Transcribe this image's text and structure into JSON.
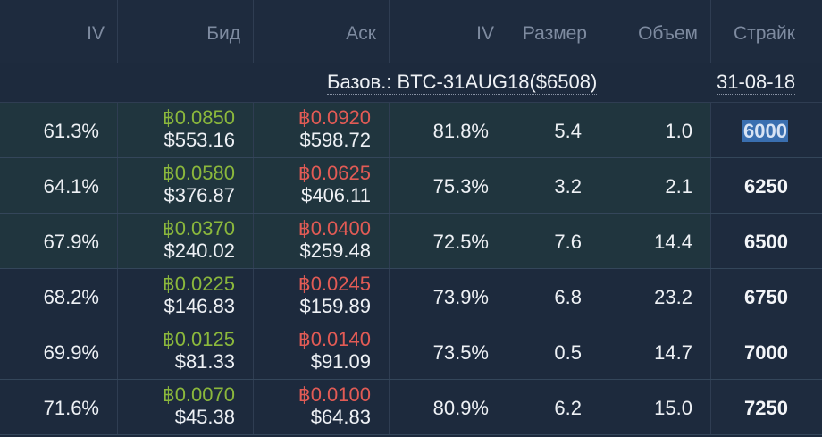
{
  "header": {
    "columns": [
      "IV",
      "Бид",
      "Аск",
      "IV",
      "Размер",
      "Объем",
      "Страйк"
    ]
  },
  "subheader": {
    "underlying": "Базов.: BTC-31AUG18($6508)",
    "expiry": "31-08-18"
  },
  "rows": [
    {
      "iv_bid": "61.3%",
      "bid_btc": "฿0.0850",
      "bid_usd": "$553.16",
      "ask_btc": "฿0.0920",
      "ask_usd": "$598.72",
      "iv_ask": "81.8%",
      "size": "5.4",
      "volume": "1.0",
      "strike": "6000",
      "in_money": true,
      "selected": true
    },
    {
      "iv_bid": "64.1%",
      "bid_btc": "฿0.0580",
      "bid_usd": "$376.87",
      "ask_btc": "฿0.0625",
      "ask_usd": "$406.11",
      "iv_ask": "75.3%",
      "size": "3.2",
      "volume": "2.1",
      "strike": "6250",
      "in_money": true,
      "selected": false
    },
    {
      "iv_bid": "67.9%",
      "bid_btc": "฿0.0370",
      "bid_usd": "$240.02",
      "ask_btc": "฿0.0400",
      "ask_usd": "$259.48",
      "iv_ask": "72.5%",
      "size": "7.6",
      "volume": "14.4",
      "strike": "6500",
      "in_money": true,
      "selected": false
    },
    {
      "iv_bid": "68.2%",
      "bid_btc": "฿0.0225",
      "bid_usd": "$146.83",
      "ask_btc": "฿0.0245",
      "ask_usd": "$159.89",
      "iv_ask": "73.9%",
      "size": "6.8",
      "volume": "23.2",
      "strike": "6750",
      "in_money": false,
      "selected": false
    },
    {
      "iv_bid": "69.9%",
      "bid_btc": "฿0.0125",
      "bid_usd": "$81.33",
      "ask_btc": "฿0.0140",
      "ask_usd": "$91.09",
      "iv_ask": "73.5%",
      "size": "0.5",
      "volume": "14.7",
      "strike": "7000",
      "in_money": false,
      "selected": false
    },
    {
      "iv_bid": "71.6%",
      "bid_btc": "฿0.0070",
      "bid_usd": "$45.38",
      "ask_btc": "฿0.0100",
      "ask_usd": "$64.83",
      "iv_ask": "80.9%",
      "size": "6.2",
      "volume": "15.0",
      "strike": "7250",
      "in_money": false,
      "selected": false
    }
  ],
  "colors": {
    "bid": "#8bb83c",
    "ask": "#e25b55",
    "in_money_row": "#20353e",
    "background": "#1d2a3d",
    "selection": "#3a6fb0"
  }
}
